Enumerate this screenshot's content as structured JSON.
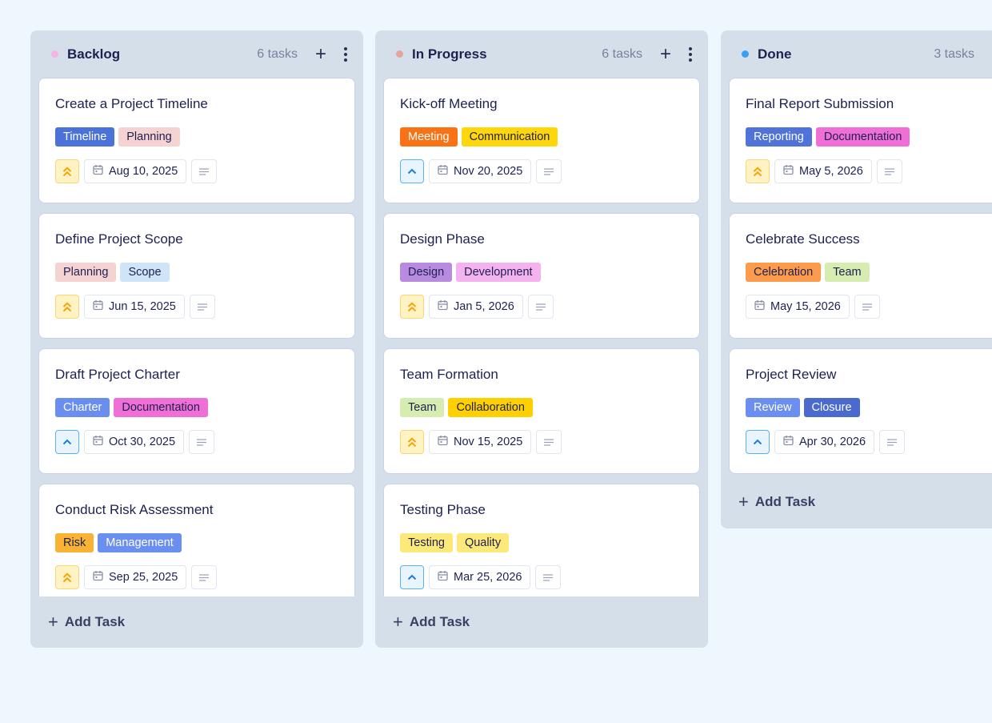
{
  "columns": [
    {
      "title": "Backlog",
      "count": "6 tasks",
      "dot": "#f5b4e6",
      "add_label": "Add Task",
      "cards": [
        {
          "title": "Create a Project Timeline",
          "tags": [
            {
              "label": "Timeline",
              "bg": "#4a72d8",
              "fg": "#fff"
            },
            {
              "label": "Planning",
              "bg": "#f6d3d3",
              "fg": "#1c2150"
            }
          ],
          "priority": "high",
          "date": "Aug 10, 2025"
        },
        {
          "title": "Define Project Scope",
          "tags": [
            {
              "label": "Planning",
              "bg": "#f6d3d3",
              "fg": "#1c2150"
            },
            {
              "label": "Scope",
              "bg": "#cfe4f7",
              "fg": "#1c2150"
            }
          ],
          "priority": "high",
          "date": "Jun 15, 2025"
        },
        {
          "title": "Draft Project Charter",
          "tags": [
            {
              "label": "Charter",
              "bg": "#6a8ef0",
              "fg": "#fff"
            },
            {
              "label": "Documentation",
              "bg": "#ef6fd6",
              "fg": "#1c2150"
            }
          ],
          "priority": "medium",
          "date": "Oct 30, 2025"
        },
        {
          "title": "Conduct Risk Assessment",
          "tags": [
            {
              "label": "Risk",
              "bg": "#f9b233",
              "fg": "#1c2150"
            },
            {
              "label": "Management",
              "bg": "#6b8ff0",
              "fg": "#fff"
            }
          ],
          "priority": "high",
          "date": "Sep 25, 2025"
        }
      ]
    },
    {
      "title": "In Progress",
      "count": "6 tasks",
      "dot": "#e8a49a",
      "add_label": "Add Task",
      "cards": [
        {
          "title": "Kick-off Meeting",
          "tags": [
            {
              "label": "Meeting",
              "bg": "#f97316",
              "fg": "#fff"
            },
            {
              "label": "Communication",
              "bg": "#ffd60a",
              "fg": "#1c2150"
            }
          ],
          "priority": "medium",
          "date": "Nov 20, 2025"
        },
        {
          "title": "Design Phase",
          "tags": [
            {
              "label": "Design",
              "bg": "#b98be0",
              "fg": "#1c2150"
            },
            {
              "label": "Development",
              "bg": "#f4b2ee",
              "fg": "#1c2150"
            }
          ],
          "priority": "high",
          "date": "Jan 5, 2026"
        },
        {
          "title": "Team Formation",
          "tags": [
            {
              "label": "Team",
              "bg": "#d6ecb0",
              "fg": "#1c2150"
            },
            {
              "label": "Collaboration",
              "bg": "#ffd000",
              "fg": "#1c2150"
            }
          ],
          "priority": "high",
          "date": "Nov 15, 2025"
        },
        {
          "title": "Testing Phase",
          "tags": [
            {
              "label": "Testing",
              "bg": "#fde97a",
              "fg": "#1c2150"
            },
            {
              "label": "Quality",
              "bg": "#fde97a",
              "fg": "#1c2150"
            }
          ],
          "priority": "medium",
          "date": "Mar 25, 2026"
        }
      ]
    },
    {
      "title": "Done",
      "count": "3 tasks",
      "dot": "#3b9ef0",
      "add_label": "Add Task",
      "cards": [
        {
          "title": "Final Report Submission",
          "tags": [
            {
              "label": "Reporting",
              "bg": "#4f73d8",
              "fg": "#fff"
            },
            {
              "label": "Documentation",
              "bg": "#ef6fd6",
              "fg": "#1c2150"
            }
          ],
          "priority": "high",
          "date": "May 5, 2026"
        },
        {
          "title": "Celebrate Success",
          "tags": [
            {
              "label": "Celebration",
              "bg": "#fb9b4b",
              "fg": "#1c2150"
            },
            {
              "label": "Team",
              "bg": "#d6ecb0",
              "fg": "#1c2150"
            }
          ],
          "priority": "none",
          "date": "May 15, 2026"
        },
        {
          "title": "Project Review",
          "tags": [
            {
              "label": "Review",
              "bg": "#6b8ff0",
              "fg": "#fff"
            },
            {
              "label": "Closure",
              "bg": "#4a6ad0",
              "fg": "#fff"
            }
          ],
          "priority": "medium",
          "date": "Apr 30, 2026"
        }
      ]
    }
  ]
}
